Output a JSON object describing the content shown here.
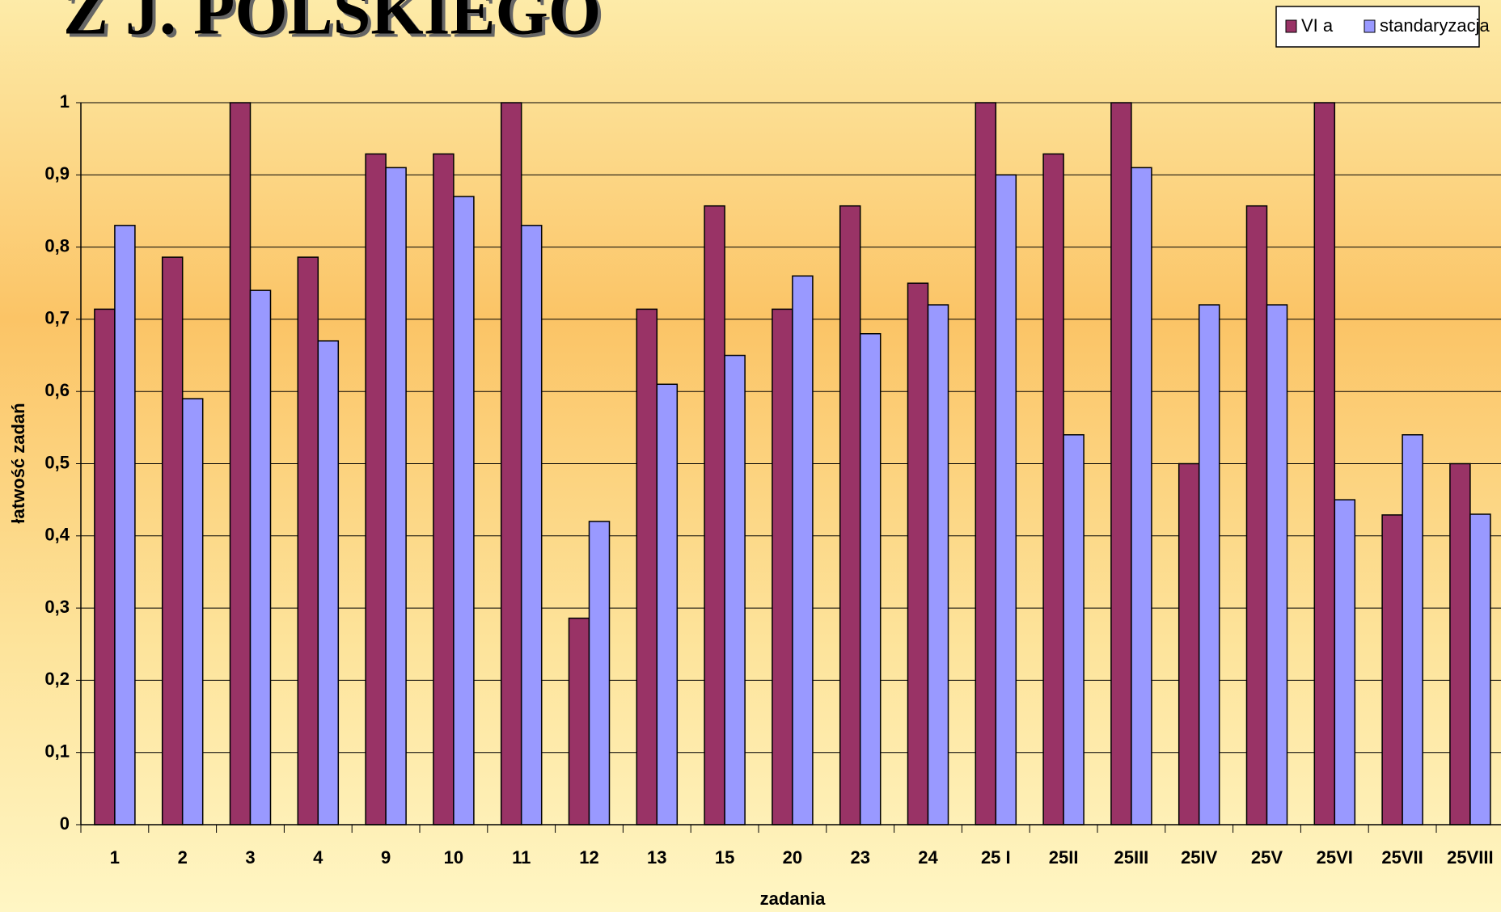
{
  "chart_data": {
    "type": "bar",
    "title": "Z J. POLSKIEGO",
    "x_label": "zadania",
    "y_label": "łatwość zadań",
    "categories": [
      "1",
      "2",
      "3",
      "4",
      "9",
      "10",
      "11",
      "12",
      "13",
      "15",
      "20",
      "23",
      "24",
      "25 I",
      "25II",
      "25III",
      "25IV",
      "25V",
      "25VI",
      "25VII",
      "25VIII"
    ],
    "series": [
      {
        "name": "VI a",
        "color": "#993366",
        "values": [
          0.714,
          0.786,
          1,
          0.786,
          0.929,
          0.929,
          1,
          0.286,
          0.714,
          0.857,
          0.714,
          0.857,
          0.75,
          1,
          0.929,
          1,
          0.5,
          0.857,
          1,
          0.429,
          0.5
        ]
      },
      {
        "name": "standaryzacja",
        "color": "#9999ff",
        "values": [
          0.83,
          0.59,
          0.74,
          0.67,
          0.91,
          0.87,
          0.83,
          0.42,
          0.61,
          0.65,
          0.76,
          0.68,
          0.72,
          0.9,
          0.54,
          0.91,
          0.72,
          0.72,
          0.45,
          0.54,
          0.43
        ]
      }
    ],
    "ylim": [
      0,
      1
    ],
    "yticks": [
      0,
      {
        "value": 0.1,
        "label": "0,1"
      },
      {
        "value": 0.2,
        "label": "0,2"
      },
      {
        "value": 0.3,
        "label": "0,3"
      },
      {
        "value": 0.4,
        "label": "0,4"
      },
      {
        "value": 0.5,
        "label": "0,5"
      },
      {
        "value": 0.6,
        "label": "0,6"
      },
      {
        "value": 0.7,
        "label": "0,7"
      },
      {
        "value": 0.8,
        "label": "0,8"
      },
      {
        "value": 0.9,
        "label": "0,9"
      },
      1
    ],
    "grid": true,
    "legend": "top-right"
  }
}
